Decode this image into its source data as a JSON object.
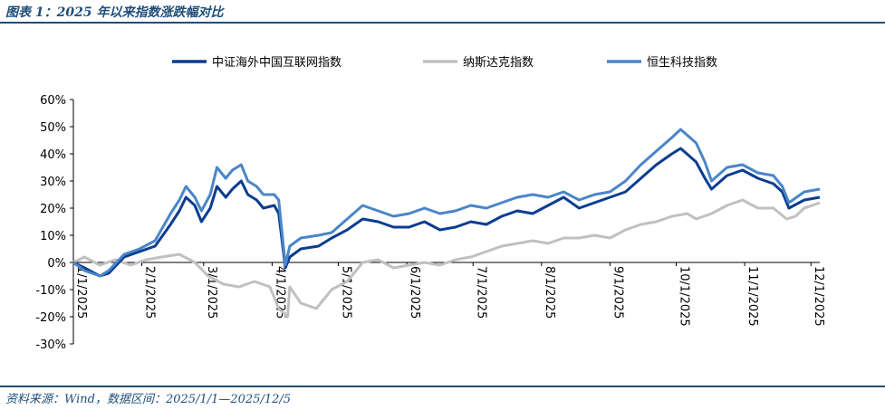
{
  "figure_title": "图表 1：2025 年以来指数涨跌幅对比",
  "source_note": "资料来源：Wind，数据区间：2025/1/1—2025/12/5",
  "chart_data": {
    "type": "line",
    "title": "",
    "xlabel": "",
    "ylabel": "",
    "ylim": [
      -30,
      60
    ],
    "yunit": "%",
    "y_ticks": [
      "60%",
      "50%",
      "40%",
      "30%",
      "20%",
      "10%",
      "0%",
      "-10%",
      "-20%",
      "-30%"
    ],
    "x_ticks": [
      "1/1/2025",
      "2/1/2025",
      "3/1/2025",
      "4/1/2025",
      "5/1/2025",
      "6/1/2025",
      "7/1/2025",
      "8/1/2025",
      "9/1/2025",
      "10/1/2025",
      "11/1/2025",
      "12/1/2025"
    ],
    "x_range": [
      "2025-01-01",
      "2025-12-05"
    ],
    "grid": false,
    "legend_position": "top",
    "series": [
      {
        "name": "中证海外中国互联网指数",
        "color": "#0b3d91",
        "points": [
          [
            "2025-01-01",
            0
          ],
          [
            "2025-01-06",
            -2
          ],
          [
            "2025-01-13",
            -5
          ],
          [
            "2025-01-17",
            -4
          ],
          [
            "2025-01-24",
            2
          ],
          [
            "2025-01-31",
            4
          ],
          [
            "2025-02-07",
            6
          ],
          [
            "2025-02-14",
            14
          ],
          [
            "2025-02-18",
            19
          ],
          [
            "2025-02-21",
            24
          ],
          [
            "2025-02-25",
            21
          ],
          [
            "2025-02-28",
            15
          ],
          [
            "2025-03-04",
            20
          ],
          [
            "2025-03-07",
            28
          ],
          [
            "2025-03-11",
            24
          ],
          [
            "2025-03-14",
            27
          ],
          [
            "2025-03-18",
            30
          ],
          [
            "2025-03-21",
            25
          ],
          [
            "2025-03-25",
            23
          ],
          [
            "2025-03-28",
            20
          ],
          [
            "2025-04-02",
            21
          ],
          [
            "2025-04-04",
            18
          ],
          [
            "2025-04-07",
            -2
          ],
          [
            "2025-04-09",
            2
          ],
          [
            "2025-04-14",
            5
          ],
          [
            "2025-04-22",
            6
          ],
          [
            "2025-04-28",
            9
          ],
          [
            "2025-05-05",
            12
          ],
          [
            "2025-05-12",
            16
          ],
          [
            "2025-05-19",
            15
          ],
          [
            "2025-05-26",
            13
          ],
          [
            "2025-06-02",
            13
          ],
          [
            "2025-06-09",
            15
          ],
          [
            "2025-06-16",
            12
          ],
          [
            "2025-06-23",
            13
          ],
          [
            "2025-06-30",
            15
          ],
          [
            "2025-07-07",
            14
          ],
          [
            "2025-07-14",
            17
          ],
          [
            "2025-07-21",
            19
          ],
          [
            "2025-07-28",
            18
          ],
          [
            "2025-08-04",
            21
          ],
          [
            "2025-08-11",
            24
          ],
          [
            "2025-08-18",
            20
          ],
          [
            "2025-08-25",
            22
          ],
          [
            "2025-09-01",
            24
          ],
          [
            "2025-09-08",
            26
          ],
          [
            "2025-09-15",
            31
          ],
          [
            "2025-09-22",
            36
          ],
          [
            "2025-09-29",
            40
          ],
          [
            "2025-10-03",
            42
          ],
          [
            "2025-10-10",
            37
          ],
          [
            "2025-10-14",
            31
          ],
          [
            "2025-10-17",
            27
          ],
          [
            "2025-10-24",
            32
          ],
          [
            "2025-10-31",
            34
          ],
          [
            "2025-11-07",
            31
          ],
          [
            "2025-11-14",
            29
          ],
          [
            "2025-11-18",
            26
          ],
          [
            "2025-11-21",
            20
          ],
          [
            "2025-11-28",
            23
          ],
          [
            "2025-12-05",
            24
          ]
        ]
      },
      {
        "name": "纳斯达克指数",
        "color": "#c0c0c0",
        "points": [
          [
            "2025-01-01",
            0
          ],
          [
            "2025-01-06",
            2
          ],
          [
            "2025-01-13",
            -1
          ],
          [
            "2025-01-20",
            1
          ],
          [
            "2025-01-27",
            -1
          ],
          [
            "2025-02-03",
            1
          ],
          [
            "2025-02-10",
            2
          ],
          [
            "2025-02-18",
            3
          ],
          [
            "2025-02-25",
            0
          ],
          [
            "2025-03-03",
            -5
          ],
          [
            "2025-03-10",
            -8
          ],
          [
            "2025-03-17",
            -9
          ],
          [
            "2025-03-24",
            -7
          ],
          [
            "2025-03-31",
            -9
          ],
          [
            "2025-04-04",
            -17
          ],
          [
            "2025-04-08",
            -20
          ],
          [
            "2025-04-09",
            -9
          ],
          [
            "2025-04-14",
            -15
          ],
          [
            "2025-04-21",
            -17
          ],
          [
            "2025-04-28",
            -10
          ],
          [
            "2025-05-05",
            -7
          ],
          [
            "2025-05-12",
            0
          ],
          [
            "2025-05-19",
            1
          ],
          [
            "2025-05-26",
            -2
          ],
          [
            "2025-06-02",
            -1
          ],
          [
            "2025-06-09",
            0
          ],
          [
            "2025-06-16",
            -1
          ],
          [
            "2025-06-23",
            1
          ],
          [
            "2025-06-30",
            2
          ],
          [
            "2025-07-07",
            4
          ],
          [
            "2025-07-14",
            6
          ],
          [
            "2025-07-21",
            7
          ],
          [
            "2025-07-28",
            8
          ],
          [
            "2025-08-04",
            7
          ],
          [
            "2025-08-11",
            9
          ],
          [
            "2025-08-18",
            9
          ],
          [
            "2025-08-25",
            10
          ],
          [
            "2025-09-01",
            9
          ],
          [
            "2025-09-08",
            12
          ],
          [
            "2025-09-15",
            14
          ],
          [
            "2025-09-22",
            15
          ],
          [
            "2025-09-29",
            17
          ],
          [
            "2025-10-06",
            18
          ],
          [
            "2025-10-10",
            16
          ],
          [
            "2025-10-17",
            18
          ],
          [
            "2025-10-24",
            21
          ],
          [
            "2025-10-31",
            23
          ],
          [
            "2025-11-07",
            20
          ],
          [
            "2025-11-14",
            20
          ],
          [
            "2025-11-20",
            16
          ],
          [
            "2025-11-24",
            17
          ],
          [
            "2025-11-28",
            20
          ],
          [
            "2025-12-05",
            22
          ]
        ]
      },
      {
        "name": "恒生科技指数",
        "color": "#4a86c8",
        "points": [
          [
            "2025-01-01",
            0
          ],
          [
            "2025-01-06",
            -3
          ],
          [
            "2025-01-13",
            -5
          ],
          [
            "2025-01-17",
            -3
          ],
          [
            "2025-01-24",
            3
          ],
          [
            "2025-01-31",
            5
          ],
          [
            "2025-02-07",
            8
          ],
          [
            "2025-02-14",
            18
          ],
          [
            "2025-02-18",
            23
          ],
          [
            "2025-02-21",
            28
          ],
          [
            "2025-02-25",
            24
          ],
          [
            "2025-02-28",
            19
          ],
          [
            "2025-03-04",
            25
          ],
          [
            "2025-03-07",
            35
          ],
          [
            "2025-03-11",
            31
          ],
          [
            "2025-03-14",
            34
          ],
          [
            "2025-03-18",
            36
          ],
          [
            "2025-03-21",
            30
          ],
          [
            "2025-03-25",
            28
          ],
          [
            "2025-03-28",
            25
          ],
          [
            "2025-04-02",
            25
          ],
          [
            "2025-04-04",
            23
          ],
          [
            "2025-04-07",
            -1
          ],
          [
            "2025-04-09",
            6
          ],
          [
            "2025-04-14",
            9
          ],
          [
            "2025-04-22",
            10
          ],
          [
            "2025-04-28",
            11
          ],
          [
            "2025-05-05",
            16
          ],
          [
            "2025-05-12",
            21
          ],
          [
            "2025-05-19",
            19
          ],
          [
            "2025-05-26",
            17
          ],
          [
            "2025-06-02",
            18
          ],
          [
            "2025-06-09",
            20
          ],
          [
            "2025-06-16",
            18
          ],
          [
            "2025-06-23",
            19
          ],
          [
            "2025-06-30",
            21
          ],
          [
            "2025-07-07",
            20
          ],
          [
            "2025-07-14",
            22
          ],
          [
            "2025-07-21",
            24
          ],
          [
            "2025-07-28",
            25
          ],
          [
            "2025-08-04",
            24
          ],
          [
            "2025-08-11",
            26
          ],
          [
            "2025-08-18",
            23
          ],
          [
            "2025-08-25",
            25
          ],
          [
            "2025-09-01",
            26
          ],
          [
            "2025-09-08",
            30
          ],
          [
            "2025-09-15",
            36
          ],
          [
            "2025-09-22",
            41
          ],
          [
            "2025-09-29",
            46
          ],
          [
            "2025-10-03",
            49
          ],
          [
            "2025-10-10",
            44
          ],
          [
            "2025-10-14",
            37
          ],
          [
            "2025-10-17",
            30
          ],
          [
            "2025-10-24",
            35
          ],
          [
            "2025-10-31",
            36
          ],
          [
            "2025-11-07",
            33
          ],
          [
            "2025-11-14",
            32
          ],
          [
            "2025-11-18",
            28
          ],
          [
            "2025-11-21",
            22
          ],
          [
            "2025-11-28",
            26
          ],
          [
            "2025-12-05",
            27
          ]
        ]
      }
    ]
  }
}
